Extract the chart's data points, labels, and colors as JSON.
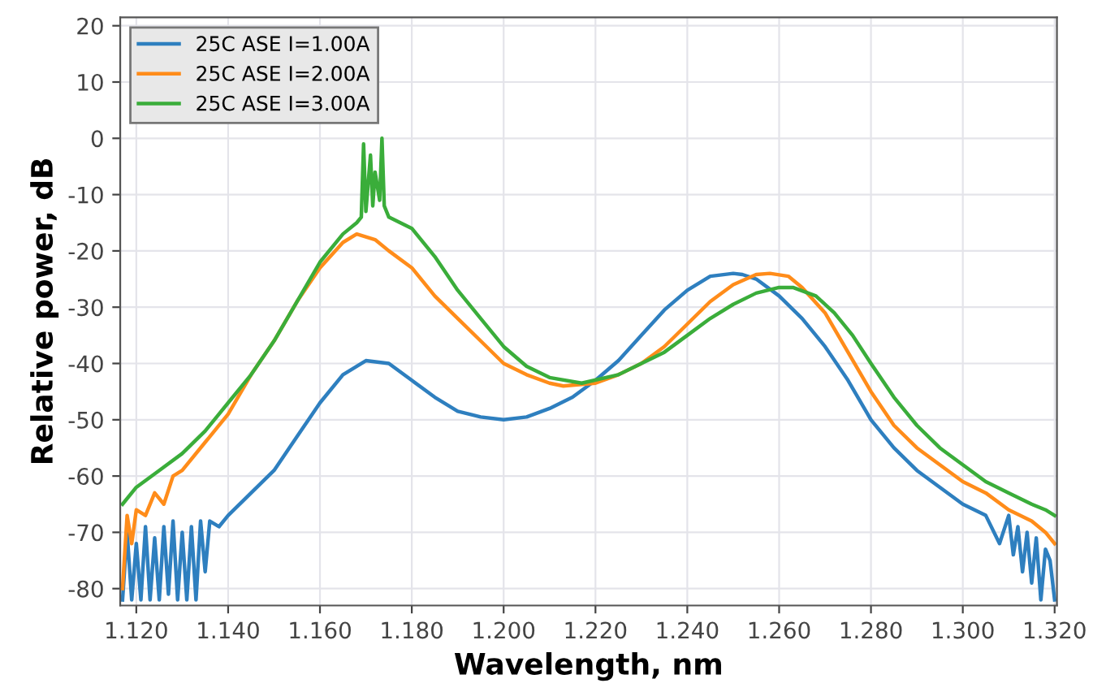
{
  "chart_data": {
    "type": "line",
    "xlabel": "Wavelength, nm",
    "ylabel": "Relative power, dB",
    "xlim": [
      1.1165,
      1.3205
    ],
    "ylim": [
      -83,
      21.5
    ],
    "xticks": [
      {
        "value": 1.12,
        "label": "1.120"
      },
      {
        "value": 1.14,
        "label": "1.140"
      },
      {
        "value": 1.16,
        "label": "1.160"
      },
      {
        "value": 1.18,
        "label": "1.180"
      },
      {
        "value": 1.2,
        "label": "1.200"
      },
      {
        "value": 1.22,
        "label": "1.220"
      },
      {
        "value": 1.24,
        "label": "1.240"
      },
      {
        "value": 1.26,
        "label": "1.260"
      },
      {
        "value": 1.28,
        "label": "1.280"
      },
      {
        "value": 1.3,
        "label": "1.300"
      },
      {
        "value": 1.32,
        "label": "1.320"
      }
    ],
    "yticks": [
      -80,
      -70,
      -60,
      -50,
      -40,
      -30,
      -20,
      -10,
      0,
      10,
      20
    ],
    "grid": true,
    "legend": "top left",
    "marker": "none",
    "line_style": "solid",
    "series": [
      {
        "name": "25C ASE I=1.00A",
        "color": "#2e7fbf",
        "x": [
          1.117,
          1.118,
          1.119,
          1.12,
          1.121,
          1.122,
          1.123,
          1.124,
          1.125,
          1.126,
          1.127,
          1.128,
          1.129,
          1.13,
          1.131,
          1.132,
          1.133,
          1.134,
          1.135,
          1.136,
          1.138,
          1.14,
          1.145,
          1.15,
          1.155,
          1.16,
          1.165,
          1.17,
          1.175,
          1.18,
          1.185,
          1.19,
          1.195,
          1.2,
          1.205,
          1.21,
          1.215,
          1.22,
          1.225,
          1.23,
          1.235,
          1.24,
          1.245,
          1.25,
          1.252,
          1.255,
          1.26,
          1.265,
          1.27,
          1.275,
          1.28,
          1.285,
          1.29,
          1.295,
          1.3,
          1.305,
          1.308,
          1.31,
          1.311,
          1.312,
          1.313,
          1.314,
          1.315,
          1.316,
          1.317,
          1.318,
          1.319,
          1.32
        ],
        "values": [
          -82,
          -70,
          -82,
          -72,
          -82,
          -69,
          -82,
          -71,
          -82,
          -69,
          -81,
          -68,
          -82,
          -70,
          -82,
          -69,
          -82,
          -68,
          -77,
          -68,
          -69,
          -67,
          -63,
          -59,
          -53,
          -47,
          -42,
          -39.5,
          -40,
          -43,
          -46,
          -48.5,
          -49.5,
          -50,
          -49.5,
          -48,
          -46,
          -43,
          -39.5,
          -35,
          -30.5,
          -27,
          -24.5,
          -24,
          -24.2,
          -25,
          -28,
          -32,
          -37,
          -43,
          -50,
          -55,
          -59,
          -62,
          -65,
          -67,
          -72,
          -67,
          -74,
          -69,
          -77,
          -70,
          -79,
          -71,
          -82,
          -73,
          -75,
          -82
        ]
      },
      {
        "name": "25C ASE I=2.00A",
        "color": "#ff8c1a",
        "x": [
          1.117,
          1.118,
          1.119,
          1.12,
          1.122,
          1.124,
          1.126,
          1.128,
          1.13,
          1.135,
          1.14,
          1.145,
          1.15,
          1.155,
          1.16,
          1.165,
          1.168,
          1.172,
          1.175,
          1.18,
          1.185,
          1.19,
          1.195,
          1.2,
          1.205,
          1.21,
          1.213,
          1.22,
          1.225,
          1.23,
          1.235,
          1.24,
          1.245,
          1.25,
          1.255,
          1.258,
          1.262,
          1.265,
          1.27,
          1.275,
          1.28,
          1.285,
          1.29,
          1.295,
          1.3,
          1.305,
          1.31,
          1.315,
          1.318,
          1.32
        ],
        "values": [
          -80,
          -67,
          -72,
          -66,
          -67,
          -63,
          -65,
          -60,
          -59,
          -54,
          -49,
          -42,
          -36,
          -29,
          -23,
          -18.5,
          -17,
          -18,
          -20,
          -23,
          -28,
          -32,
          -36,
          -40,
          -42,
          -43.5,
          -44,
          -43.5,
          -42,
          -40,
          -37,
          -33,
          -29,
          -26,
          -24.2,
          -24,
          -24.5,
          -26.5,
          -31,
          -38,
          -45,
          -51,
          -55,
          -58,
          -61,
          -63,
          -66,
          -68,
          -70,
          -72
        ]
      },
      {
        "name": "25C ASE I=3.00A",
        "color": "#3aad3a",
        "x": [
          1.117,
          1.12,
          1.125,
          1.13,
          1.135,
          1.14,
          1.145,
          1.15,
          1.155,
          1.16,
          1.165,
          1.168,
          1.169,
          1.1695,
          1.17,
          1.171,
          1.1715,
          1.172,
          1.173,
          1.1735,
          1.174,
          1.175,
          1.18,
          1.185,
          1.19,
          1.195,
          1.2,
          1.205,
          1.21,
          1.217,
          1.225,
          1.23,
          1.235,
          1.24,
          1.245,
          1.25,
          1.255,
          1.26,
          1.263,
          1.268,
          1.272,
          1.276,
          1.28,
          1.285,
          1.29,
          1.295,
          1.3,
          1.305,
          1.31,
          1.315,
          1.318,
          1.32
        ],
        "values": [
          -65,
          -62,
          -59,
          -56,
          -52,
          -47,
          -42,
          -36,
          -29,
          -22,
          -17,
          -15,
          -14,
          -1,
          -13,
          -3,
          -12,
          -6,
          -11,
          0,
          -12,
          -14,
          -16,
          -21,
          -27,
          -32,
          -37,
          -40.5,
          -42.5,
          -43.5,
          -42,
          -40,
          -38,
          -35,
          -32,
          -29.5,
          -27.5,
          -26.5,
          -26.5,
          -28,
          -31,
          -35,
          -40,
          -46,
          -51,
          -55,
          -58,
          -61,
          -63,
          -65,
          -66,
          -67
        ]
      }
    ]
  }
}
